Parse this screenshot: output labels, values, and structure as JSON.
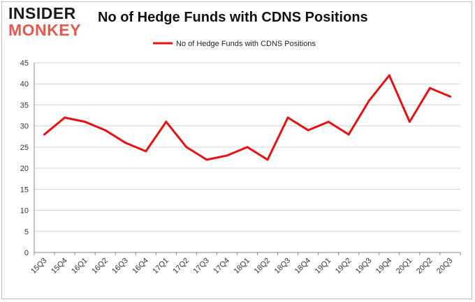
{
  "logo": {
    "line1": "INSIDER",
    "line2": "MONKEY"
  },
  "chart_data": {
    "type": "line",
    "title": "No of Hedge Funds with CDNS Positions",
    "xlabel": "",
    "ylabel": "",
    "categories": [
      "15Q3",
      "15Q4",
      "16Q1",
      "16Q2",
      "16Q3",
      "16Q4",
      "17Q1",
      "17Q2",
      "17Q3",
      "17Q4",
      "18Q1",
      "18Q2",
      "18Q3",
      "18Q4",
      "19Q1",
      "19Q2",
      "19Q3",
      "19Q4",
      "20Q1",
      "20Q2",
      "20Q3"
    ],
    "series": [
      {
        "name": "No of Hedge Funds with CDNS Positions",
        "values": [
          28,
          32,
          31,
          29,
          26,
          24,
          31,
          25,
          22,
          23,
          25,
          22,
          32,
          29,
          31,
          28,
          36,
          42,
          31,
          39,
          37
        ],
        "color": "#e81010"
      }
    ],
    "ylim": [
      0,
      45
    ],
    "yticks": [
      0,
      5,
      10,
      15,
      20,
      25,
      30,
      35,
      40,
      45
    ],
    "grid": true,
    "legend_position": "top-center"
  }
}
